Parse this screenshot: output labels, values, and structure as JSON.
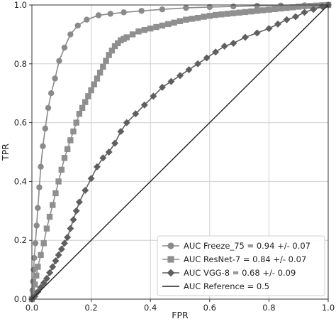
{
  "chart_data": {
    "type": "line",
    "title": "",
    "xlabel": "FPR",
    "ylabel": "TPR",
    "xlim": [
      0,
      1
    ],
    "ylim": [
      0,
      1
    ],
    "xticks": [
      "0.0",
      "0.2",
      "0.4",
      "0.6",
      "0.8",
      "1.0"
    ],
    "yticks": [
      "0.0",
      "0.2",
      "0.4",
      "0.6",
      "0.8",
      "1.0"
    ],
    "grid": true,
    "legend_position": "bottom-right",
    "series": [
      {
        "name": "AUC Freeze_75 = 0.94 +/- 0.07",
        "color": "#8a8a8a",
        "marker": "circle",
        "x": [
          0,
          0.002,
          0.004,
          0.006,
          0.008,
          0.012,
          0.016,
          0.02,
          0.025,
          0.03,
          0.037,
          0.045,
          0.055,
          0.065,
          0.078,
          0.092,
          0.11,
          0.13,
          0.155,
          0.185,
          0.225,
          0.265,
          0.31,
          0.37,
          0.44,
          0.52,
          0.6,
          0.68,
          0.76,
          0.84,
          0.92,
          1.0
        ],
        "y": [
          0,
          0.03,
          0.06,
          0.1,
          0.14,
          0.19,
          0.25,
          0.31,
          0.38,
          0.45,
          0.52,
          0.58,
          0.65,
          0.7,
          0.75,
          0.81,
          0.855,
          0.9,
          0.93,
          0.95,
          0.965,
          0.97,
          0.975,
          0.98,
          0.985,
          0.99,
          0.993,
          0.995,
          0.997,
          0.998,
          0.999,
          1.0
        ]
      },
      {
        "name": "AUC ResNet-7 = 0.84 +/- 0.07",
        "color": "#8f8f8f",
        "marker": "square",
        "x": [
          0,
          0.005,
          0.01,
          0.015,
          0.02,
          0.03,
          0.04,
          0.05,
          0.06,
          0.07,
          0.08,
          0.09,
          0.1,
          0.11,
          0.12,
          0.13,
          0.14,
          0.15,
          0.16,
          0.17,
          0.18,
          0.19,
          0.2,
          0.21,
          0.22,
          0.23,
          0.24,
          0.25,
          0.26,
          0.27,
          0.28,
          0.29,
          0.3,
          0.31,
          0.32,
          0.34,
          0.36,
          0.38,
          0.4,
          0.42,
          0.44,
          0.46,
          0.48,
          0.5,
          0.52,
          0.54,
          0.56,
          0.58,
          0.6,
          0.62,
          0.64,
          0.66,
          0.68,
          0.7,
          0.72,
          0.74,
          0.76,
          0.78,
          0.8,
          0.82,
          0.84,
          0.86,
          0.88,
          0.9,
          0.92,
          0.94,
          0.96,
          0.98,
          1.0
        ],
        "y": [
          0,
          0.02,
          0.05,
          0.08,
          0.11,
          0.15,
          0.19,
          0.24,
          0.28,
          0.32,
          0.36,
          0.4,
          0.44,
          0.48,
          0.51,
          0.54,
          0.57,
          0.6,
          0.63,
          0.65,
          0.67,
          0.69,
          0.71,
          0.73,
          0.75,
          0.77,
          0.79,
          0.81,
          0.83,
          0.845,
          0.86,
          0.87,
          0.88,
          0.885,
          0.89,
          0.9,
          0.91,
          0.915,
          0.92,
          0.925,
          0.93,
          0.935,
          0.94,
          0.945,
          0.95,
          0.953,
          0.956,
          0.96,
          0.963,
          0.966,
          0.968,
          0.97,
          0.972,
          0.974,
          0.976,
          0.978,
          0.98,
          0.982,
          0.984,
          0.986,
          0.988,
          0.99,
          0.992,
          0.994,
          0.996,
          0.997,
          0.998,
          0.999,
          1.0
        ]
      },
      {
        "name": "AUC VGG-8 = 0.68 +/- 0.09",
        "color": "#5f5f5f",
        "marker": "diamond",
        "x": [
          0,
          0.01,
          0.02,
          0.03,
          0.04,
          0.05,
          0.06,
          0.07,
          0.08,
          0.09,
          0.1,
          0.11,
          0.12,
          0.13,
          0.14,
          0.15,
          0.16,
          0.18,
          0.2,
          0.22,
          0.24,
          0.26,
          0.28,
          0.3,
          0.32,
          0.35,
          0.38,
          0.41,
          0.44,
          0.47,
          0.5,
          0.53,
          0.56,
          0.59,
          0.62,
          0.65,
          0.68,
          0.72,
          0.76,
          0.8,
          0.83,
          0.86,
          0.89,
          0.92,
          0.95,
          0.98,
          1.0
        ],
        "y": [
          0,
          0.01,
          0.025,
          0.04,
          0.055,
          0.07,
          0.09,
          0.11,
          0.13,
          0.15,
          0.17,
          0.19,
          0.21,
          0.24,
          0.27,
          0.3,
          0.33,
          0.37,
          0.41,
          0.45,
          0.48,
          0.5,
          0.53,
          0.57,
          0.6,
          0.63,
          0.66,
          0.69,
          0.72,
          0.74,
          0.76,
          0.78,
          0.8,
          0.82,
          0.84,
          0.86,
          0.87,
          0.89,
          0.905,
          0.92,
          0.935,
          0.95,
          0.96,
          0.975,
          0.985,
          0.995,
          1.0
        ]
      },
      {
        "name": "AUC Reference = 0.5",
        "color": "#222222",
        "marker": "none",
        "x": [
          0,
          1
        ],
        "y": [
          0,
          1
        ]
      }
    ]
  }
}
